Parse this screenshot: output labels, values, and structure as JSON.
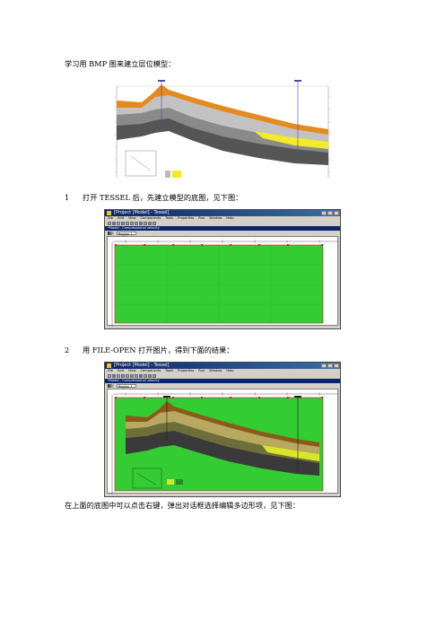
{
  "intro_text": "学习用 BMP 图来建立层位模型：",
  "steps": [
    {
      "num": "1",
      "text": "打开 TESSEL 后，先建立模型的底图，见下图："
    },
    {
      "num": "2",
      "text": "用 FILE-OPEN 打开图片，得到下面的结果："
    }
  ],
  "closing_text": "在上面的底图中可以点击右键，弹出对话框选择编辑多边形项，见下图：",
  "app_window_1": {
    "title": "[Project [Model] - Tessel]",
    "menu": [
      "File",
      "Edit",
      "View",
      "Components",
      "Tools",
      "Properties",
      "Run",
      "Window",
      "Help"
    ],
    "subtitle": "*Model - Compressional velocity",
    "layer_combo": "Region 1",
    "fill_color": "#33cc33"
  },
  "app_window_2": {
    "title": "[Project [Model] - Tessel]",
    "menu": [
      "File",
      "Edit",
      "View",
      "Components",
      "Tools",
      "Properties",
      "Run",
      "Window",
      "Help"
    ],
    "subtitle": "*Model - Compressional velocity",
    "layer_combo": "Region 1",
    "fill_color": "#33cc33"
  },
  "section_colors": {
    "orange": "#e58a1f",
    "yellow": "#f2ea2a",
    "gray_dark": "#555555",
    "gray_light": "#bdbdbd"
  }
}
